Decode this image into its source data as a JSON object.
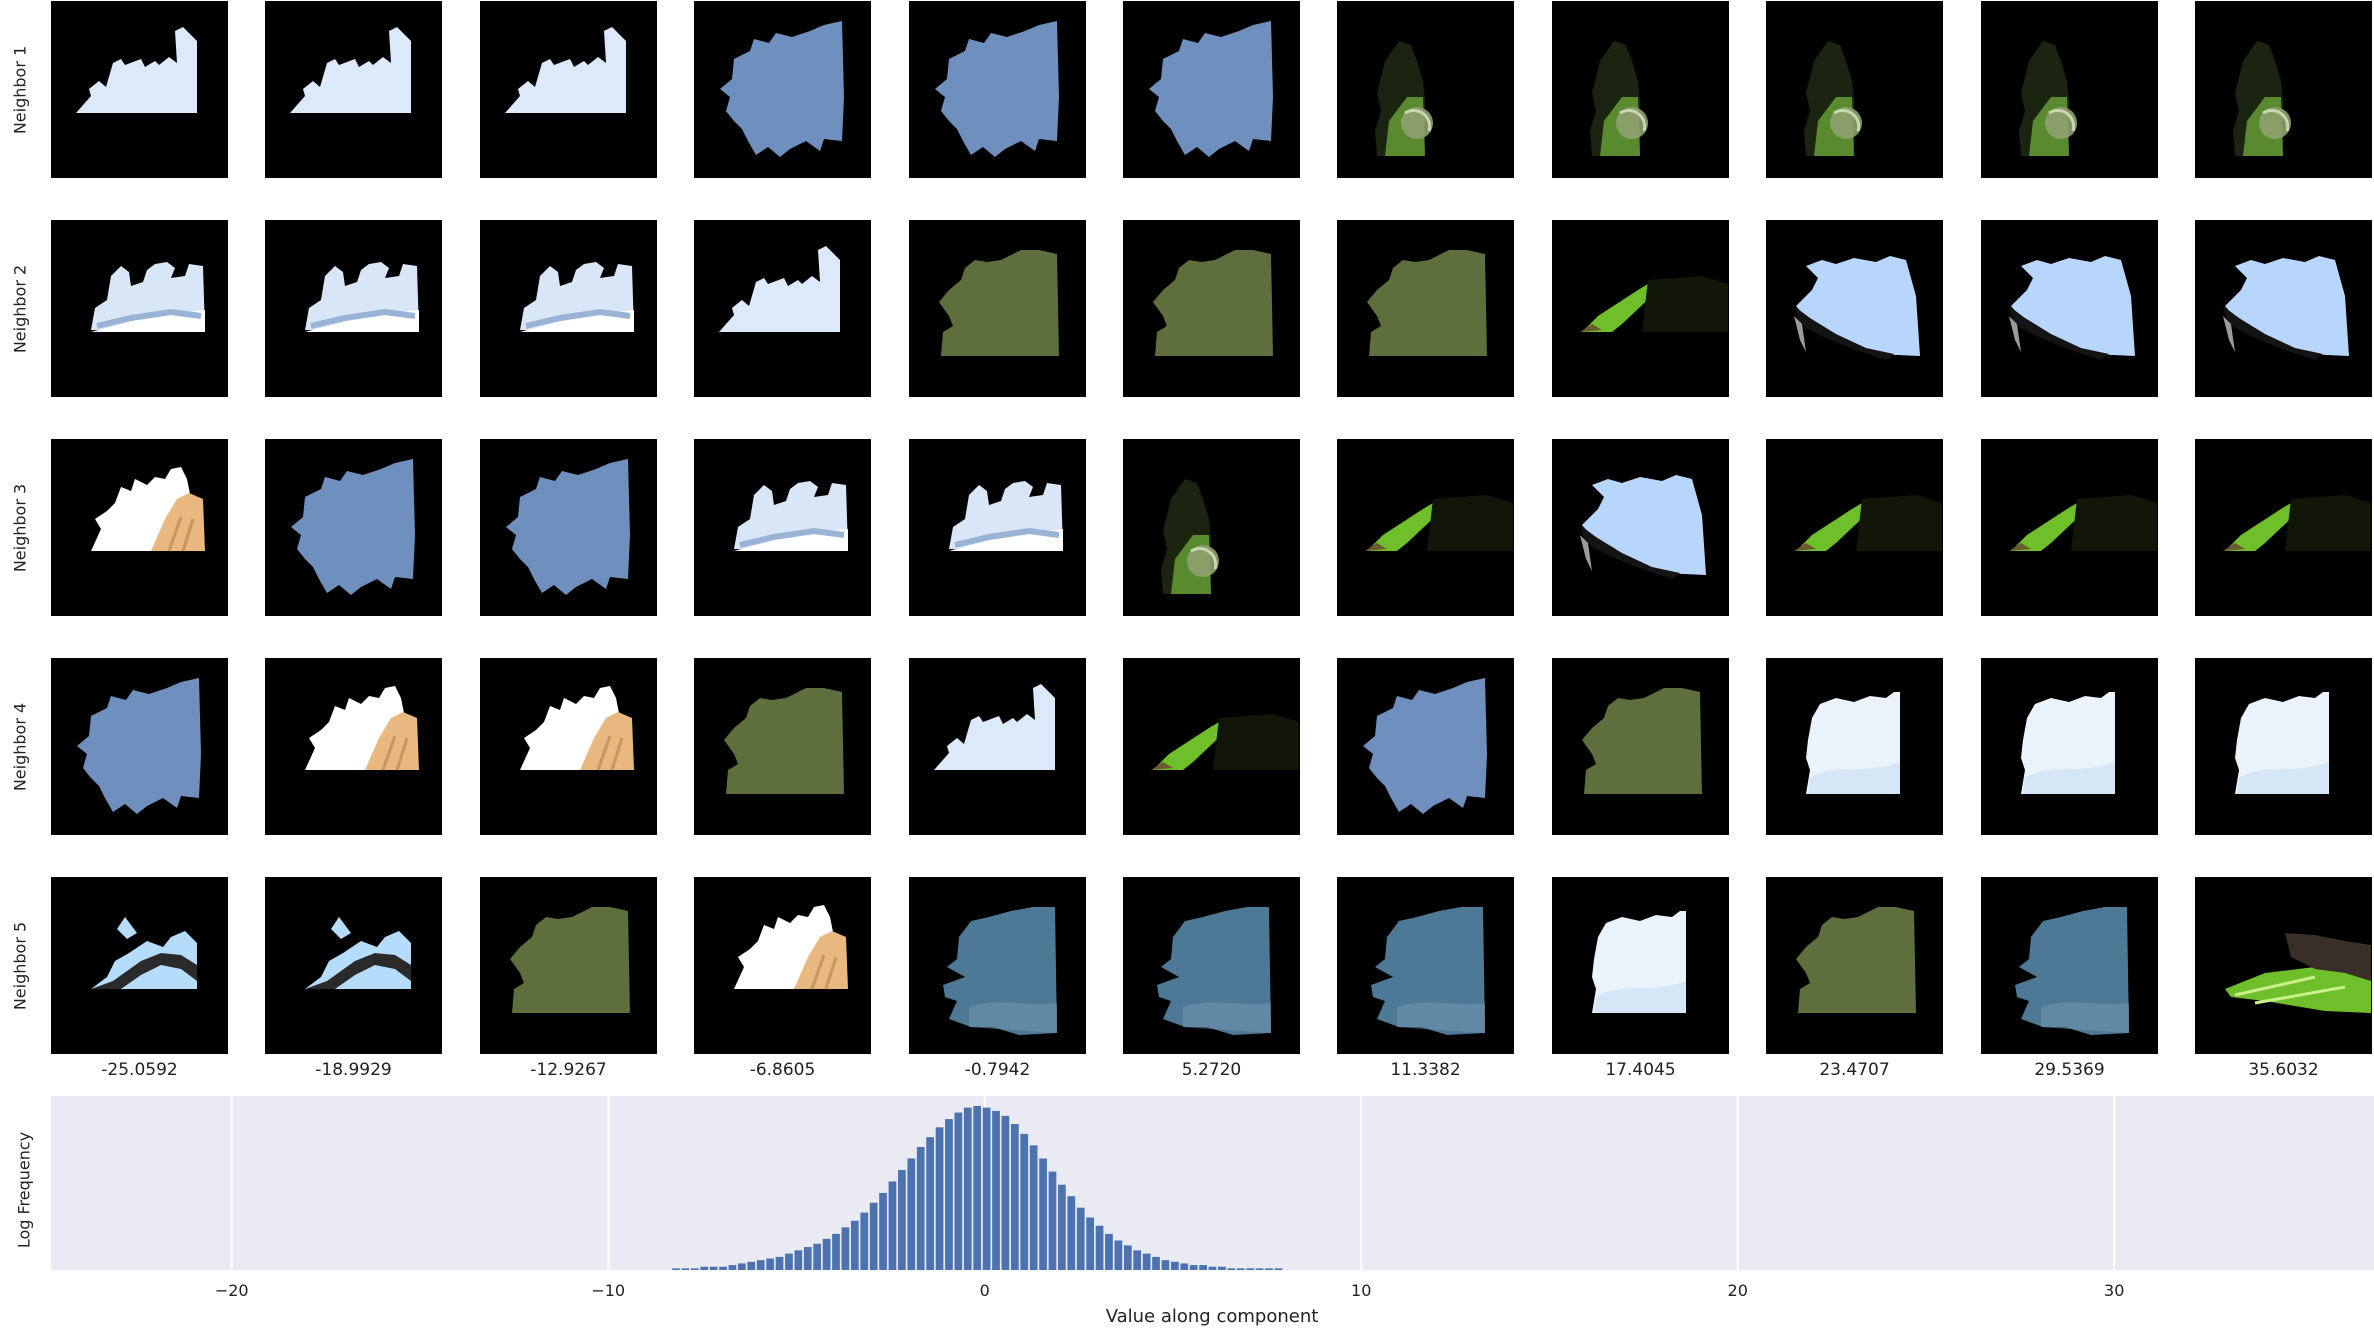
{
  "row_labels": [
    "Neighbor 1",
    "Neighbor 2",
    "Neighbor 3",
    "Neighbor 4",
    "Neighbor 5"
  ],
  "column_values": [
    "-25.0592",
    "-18.9929",
    "-12.9267",
    "-6.8605",
    "-0.7942",
    "5.2720",
    "11.3382",
    "17.4045",
    "23.4707",
    "29.5369",
    "35.6032"
  ],
  "patch_kinds": {
    "sky-white": "white sky patch",
    "sky-blue": "blue sky patch",
    "leaf-edge": "dark leaf edge patch",
    "clouds": "cloud patch",
    "olive": "olive green patch",
    "green-blade": "green leaf blade patch",
    "sky-dark": "light sky with dark curve patch",
    "hand": "white with hand patch",
    "white-cloud": "white cloud patch",
    "teal": "teal blue patch",
    "sky-bands": "sky with dark band patch",
    "leaf-burst": "bright leaf burst patch"
  },
  "grid": [
    [
      "sky-white",
      "sky-white",
      "sky-white",
      "sky-blue",
      "sky-blue",
      "sky-blue",
      "leaf-edge",
      "leaf-edge",
      "leaf-edge",
      "leaf-edge",
      "leaf-edge"
    ],
    [
      "clouds",
      "clouds",
      "clouds",
      "sky-white",
      "olive",
      "olive",
      "olive",
      "green-blade",
      "sky-dark",
      "sky-dark",
      "sky-dark"
    ],
    [
      "hand",
      "sky-blue",
      "sky-blue",
      "clouds",
      "clouds",
      "leaf-edge",
      "green-blade",
      "sky-dark",
      "green-blade",
      "green-blade",
      "green-blade"
    ],
    [
      "sky-blue",
      "hand",
      "hand",
      "olive",
      "sky-white",
      "green-blade",
      "sky-blue",
      "olive",
      "white-cloud",
      "white-cloud",
      "white-cloud"
    ],
    [
      "sky-bands",
      "sky-bands",
      "olive",
      "hand",
      "teal",
      "teal",
      "teal",
      "white-cloud",
      "olive",
      "teal",
      "leaf-burst"
    ]
  ],
  "colors": {
    "sky_white": "#dce9fb",
    "sky_blue": "#7598c8",
    "olive": "#5e6e3c",
    "teal": "#4d7896",
    "leaf_green": "#6fbf2a",
    "hist_bar": "#4c72b0",
    "hist_bg": "#eaeaf2"
  },
  "chart_data": {
    "type": "bar",
    "title": "",
    "xlabel": "Value along component",
    "ylabel": "Log Frequency",
    "xlim": [
      -24.8,
      36.9
    ],
    "xticks": [
      -20,
      -10,
      0,
      10,
      20,
      30
    ],
    "xtick_labels": [
      "−20",
      "−10",
      "0",
      "10",
      "20",
      "30"
    ],
    "grid": true,
    "bin_width": 0.25,
    "x": [
      -8.2,
      -7.95,
      -7.7,
      -7.45,
      -7.2,
      -6.95,
      -6.7,
      -6.45,
      -6.2,
      -5.95,
      -5.7,
      -5.45,
      -5.2,
      -4.95,
      -4.7,
      -4.45,
      -4.2,
      -3.95,
      -3.7,
      -3.45,
      -3.2,
      -2.95,
      -2.7,
      -2.45,
      -2.2,
      -1.95,
      -1.7,
      -1.45,
      -1.2,
      -0.95,
      -0.7,
      -0.45,
      -0.2,
      0.05,
      0.3,
      0.55,
      0.8,
      1.05,
      1.3,
      1.55,
      1.8,
      2.05,
      2.3,
      2.55,
      2.8,
      3.05,
      3.3,
      3.55,
      3.8,
      4.05,
      4.3,
      4.55,
      4.8,
      5.05,
      5.3,
      5.55,
      5.8,
      6.05,
      6.3,
      6.55,
      6.8,
      7.05,
      7.3,
      7.55,
      7.8
    ],
    "values": [
      1,
      1,
      1,
      2,
      2,
      2,
      3,
      4,
      5,
      6,
      7,
      8,
      10,
      12,
      14,
      16,
      19,
      22,
      26,
      30,
      35,
      41,
      47,
      54,
      61,
      68,
      75,
      81,
      87,
      92,
      96,
      99,
      100,
      99,
      97,
      94,
      89,
      83,
      76,
      68,
      60,
      52,
      45,
      38,
      32,
      27,
      22,
      18,
      15,
      12,
      10,
      8,
      6,
      5,
      4,
      3,
      3,
      2,
      2,
      1,
      1,
      1,
      1,
      1,
      1
    ]
  }
}
